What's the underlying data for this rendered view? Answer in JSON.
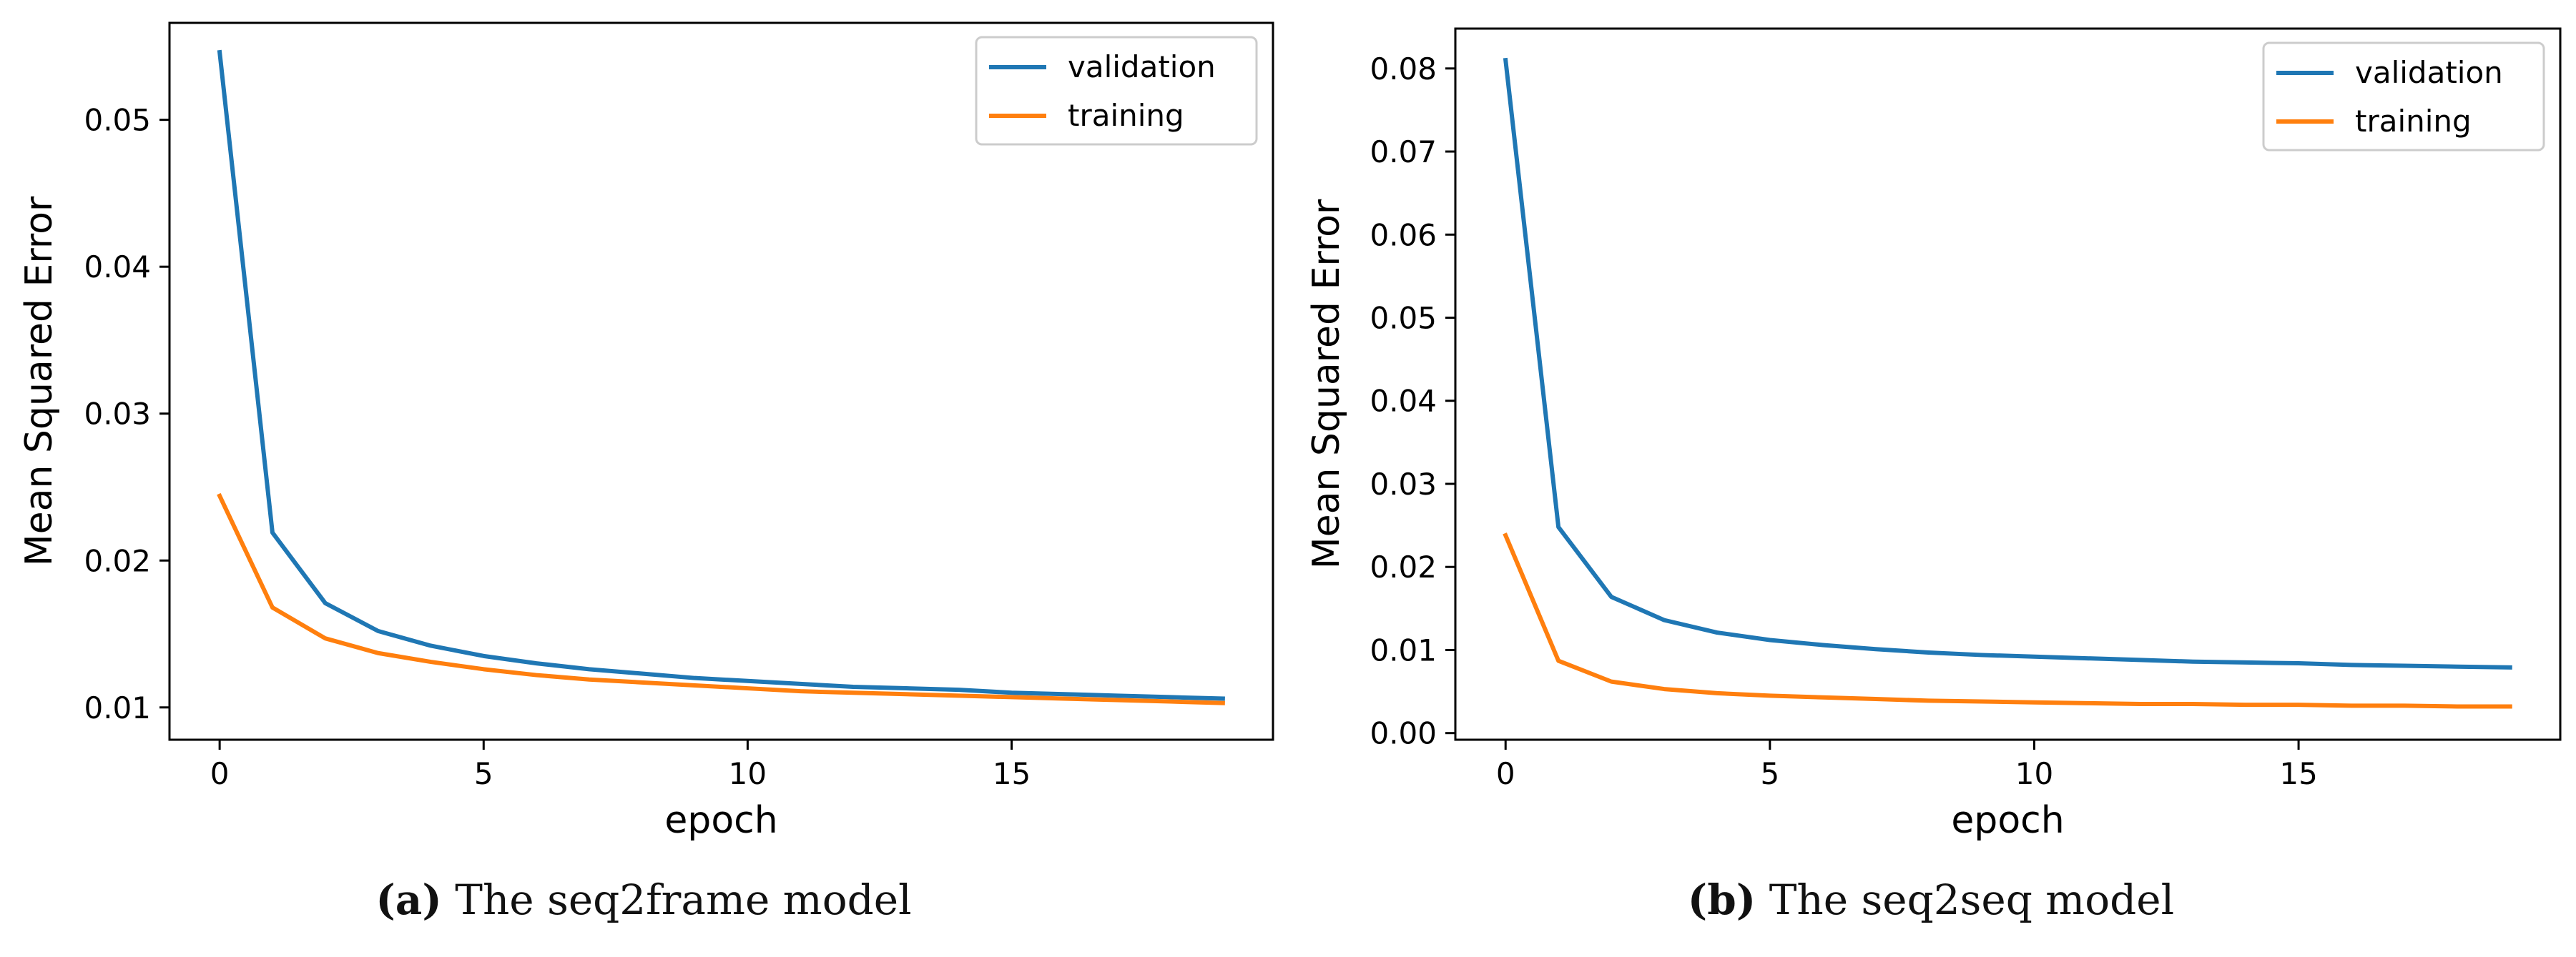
{
  "colors": {
    "validation": "#1f77b4",
    "training": "#ff7f0e"
  },
  "chart_data": [
    {
      "type": "line",
      "panel": "a",
      "xlabel": "epoch",
      "ylabel": "Mean Squared Error",
      "xlim": [
        -0.95,
        19.95
      ],
      "ylim": [
        0.0078,
        0.0566
      ],
      "xticks": [
        0,
        5,
        10,
        15
      ],
      "xtick_labels": [
        "0",
        "5",
        "10",
        "15"
      ],
      "yticks": [
        0.01,
        0.02,
        0.03,
        0.04,
        0.05
      ],
      "ytick_labels": [
        "0.01",
        "0.02",
        "0.03",
        "0.04",
        "0.05"
      ],
      "legend": "top-right",
      "x": [
        0,
        1,
        2,
        3,
        4,
        5,
        6,
        7,
        8,
        9,
        10,
        11,
        12,
        13,
        14,
        15,
        16,
        17,
        18,
        19
      ],
      "series": [
        {
          "name": "validation",
          "values": [
            0.0546,
            0.0219,
            0.0171,
            0.0152,
            0.0142,
            0.0135,
            0.013,
            0.0126,
            0.0123,
            0.012,
            0.0118,
            0.0116,
            0.0114,
            0.0113,
            0.0112,
            0.011,
            0.0109,
            0.0108,
            0.0107,
            0.0106
          ]
        },
        {
          "name": "training",
          "values": [
            0.0244,
            0.0168,
            0.0147,
            0.0137,
            0.0131,
            0.0126,
            0.0122,
            0.0119,
            0.0117,
            0.0115,
            0.0113,
            0.0111,
            0.011,
            0.0109,
            0.0108,
            0.0107,
            0.0106,
            0.0105,
            0.0104,
            0.0103
          ]
        }
      ],
      "caption_label": "(a)",
      "caption_text": "The seq2frame model"
    },
    {
      "type": "line",
      "panel": "b",
      "xlabel": "epoch",
      "ylabel": "Mean Squared Error",
      "xlim": [
        -0.95,
        19.95
      ],
      "ylim": [
        -0.0008,
        0.0848
      ],
      "xticks": [
        0,
        5,
        10,
        15
      ],
      "xtick_labels": [
        "0",
        "5",
        "10",
        "15"
      ],
      "yticks": [
        0.0,
        0.01,
        0.02,
        0.03,
        0.04,
        0.05,
        0.06,
        0.07,
        0.08
      ],
      "ytick_labels": [
        "0.00",
        "0.01",
        "0.02",
        "0.03",
        "0.04",
        "0.05",
        "0.06",
        "0.07",
        "0.08"
      ],
      "legend": "top-right",
      "x": [
        0,
        1,
        2,
        3,
        4,
        5,
        6,
        7,
        8,
        9,
        10,
        11,
        12,
        13,
        14,
        15,
        16,
        17,
        18,
        19
      ],
      "series": [
        {
          "name": "validation",
          "values": [
            0.081,
            0.0248,
            0.0164,
            0.0136,
            0.0121,
            0.0112,
            0.0106,
            0.0101,
            0.0097,
            0.0094,
            0.0092,
            0.009,
            0.0088,
            0.0086,
            0.0085,
            0.0084,
            0.0082,
            0.0081,
            0.008,
            0.0079
          ]
        },
        {
          "name": "training",
          "values": [
            0.0238,
            0.0087,
            0.0062,
            0.0053,
            0.0048,
            0.0045,
            0.0043,
            0.0041,
            0.0039,
            0.0038,
            0.0037,
            0.0036,
            0.0035,
            0.0035,
            0.0034,
            0.0034,
            0.0033,
            0.0033,
            0.0032,
            0.0032
          ]
        }
      ],
      "caption_label": "(b)",
      "caption_text": "The seq2seq model"
    }
  ]
}
